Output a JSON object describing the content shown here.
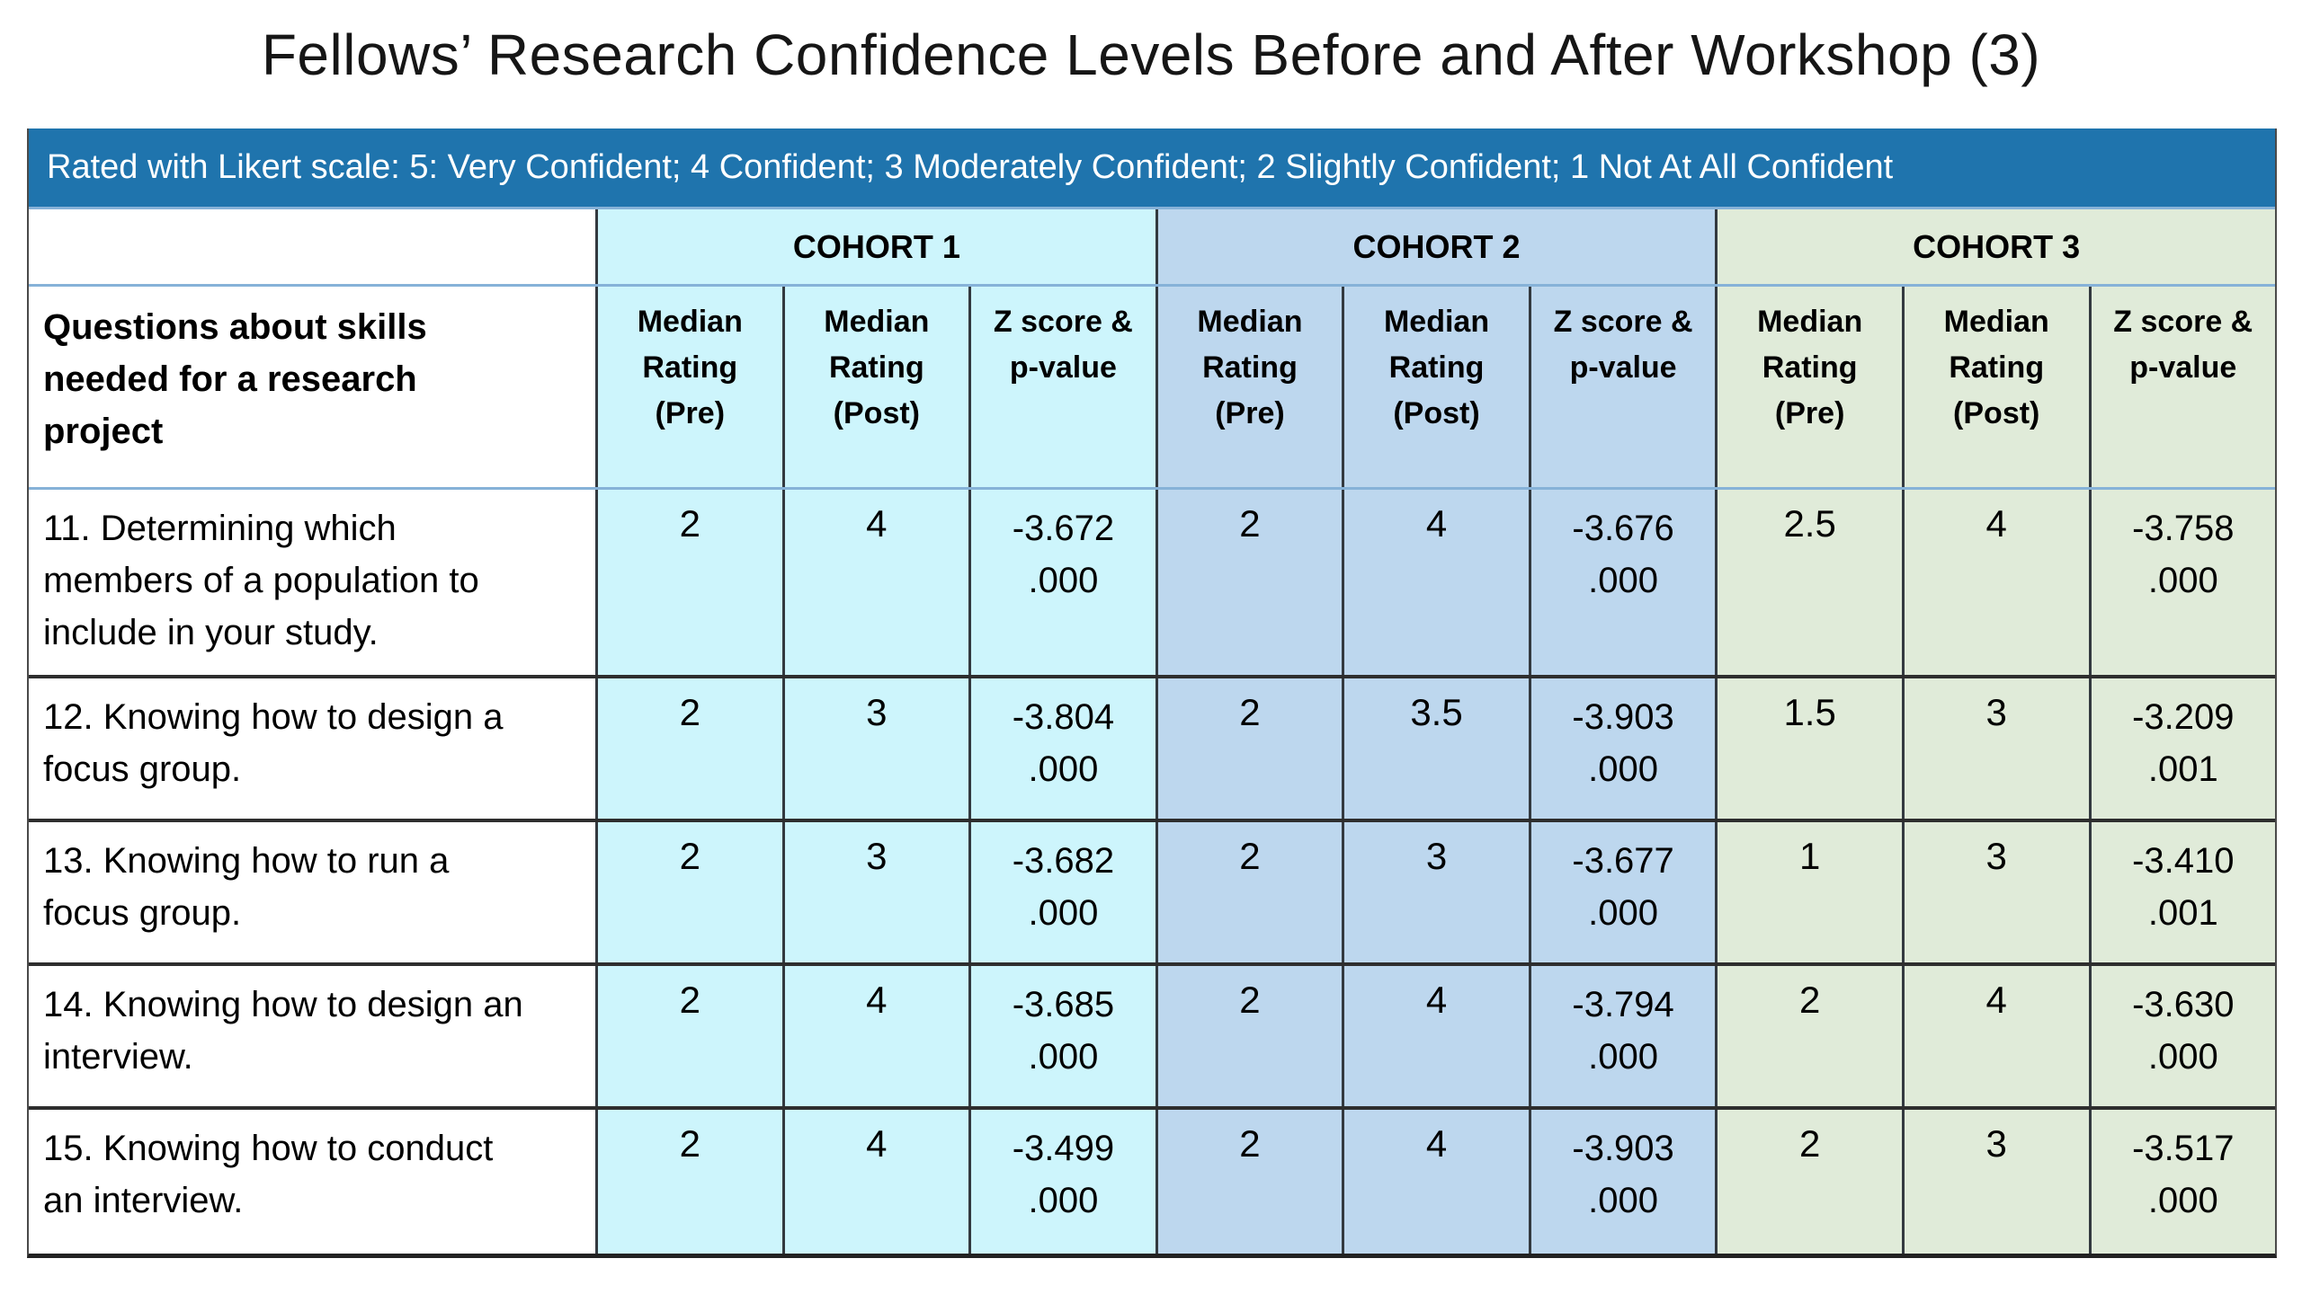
{
  "title": "Fellows’ Research Confidence Levels Before and After Workshop (3)",
  "likert_banner": "Rated with Likert scale: 5: Very Confident; 4 Confident; 3 Moderately Confident; 2 Slightly Confident; 1 Not At All Confident",
  "colors": {
    "banner_bg": "#1F74AD",
    "cohort1_bg": "#CDF5FC",
    "cohort2_bg": "#BDD7EE",
    "cohort3_bg": "#E0EBD9",
    "header_divider": "#86B2D8",
    "row_divider": "#2E2E2E"
  },
  "table": {
    "row_header_title": "Questions about skills\nneeded for a research\nproject",
    "cohorts": [
      {
        "label": "COHORT 1"
      },
      {
        "label": "COHORT 2"
      },
      {
        "label": "COHORT 3"
      }
    ],
    "sub_headers": [
      "Median\nRating\n(Pre)",
      "Median\nRating\n(Post)",
      "Z score &\np-value"
    ],
    "rows": [
      {
        "question": "11. Determining which\nmembers of a population to\ninclude in your study.",
        "cohort1": {
          "pre": "2",
          "post": "4",
          "z": "-3.672",
          "p": ".000"
        },
        "cohort2": {
          "pre": "2",
          "post": "4",
          "z": "-3.676",
          "p": ".000"
        },
        "cohort3": {
          "pre": "2.5",
          "post": "4",
          "z": "-3.758",
          "p": ".000"
        }
      },
      {
        "question": "12. Knowing how to design a\nfocus group.",
        "cohort1": {
          "pre": "2",
          "post": "3",
          "z": "-3.804",
          "p": ".000"
        },
        "cohort2": {
          "pre": "2",
          "post": "3.5",
          "z": "-3.903",
          "p": ".000"
        },
        "cohort3": {
          "pre": "1.5",
          "post": "3",
          "z": "-3.209",
          "p": ".001"
        }
      },
      {
        "question": "13. Knowing how to run a\nfocus group.",
        "cohort1": {
          "pre": "2",
          "post": "3",
          "z": "-3.682",
          "p": ".000"
        },
        "cohort2": {
          "pre": "2",
          "post": "3",
          "z": "-3.677",
          "p": ".000"
        },
        "cohort3": {
          "pre": "1",
          "post": "3",
          "z": "-3.410",
          "p": ".001"
        }
      },
      {
        "question": "14. Knowing how to design an\ninterview.",
        "cohort1": {
          "pre": "2",
          "post": "4",
          "z": "-3.685",
          "p": ".000"
        },
        "cohort2": {
          "pre": "2",
          "post": "4",
          "z": "-3.794",
          "p": ".000"
        },
        "cohort3": {
          "pre": "2",
          "post": "4",
          "z": "-3.630",
          "p": ".000"
        }
      },
      {
        "question": "15. Knowing how to conduct\nan interview.",
        "cohort1": {
          "pre": "2",
          "post": "4",
          "z": "-3.499",
          "p": ".000"
        },
        "cohort2": {
          "pre": "2",
          "post": "4",
          "z": "-3.903",
          "p": ".000"
        },
        "cohort3": {
          "pre": "2",
          "post": "3",
          "z": "-3.517",
          "p": ".000"
        }
      }
    ]
  }
}
